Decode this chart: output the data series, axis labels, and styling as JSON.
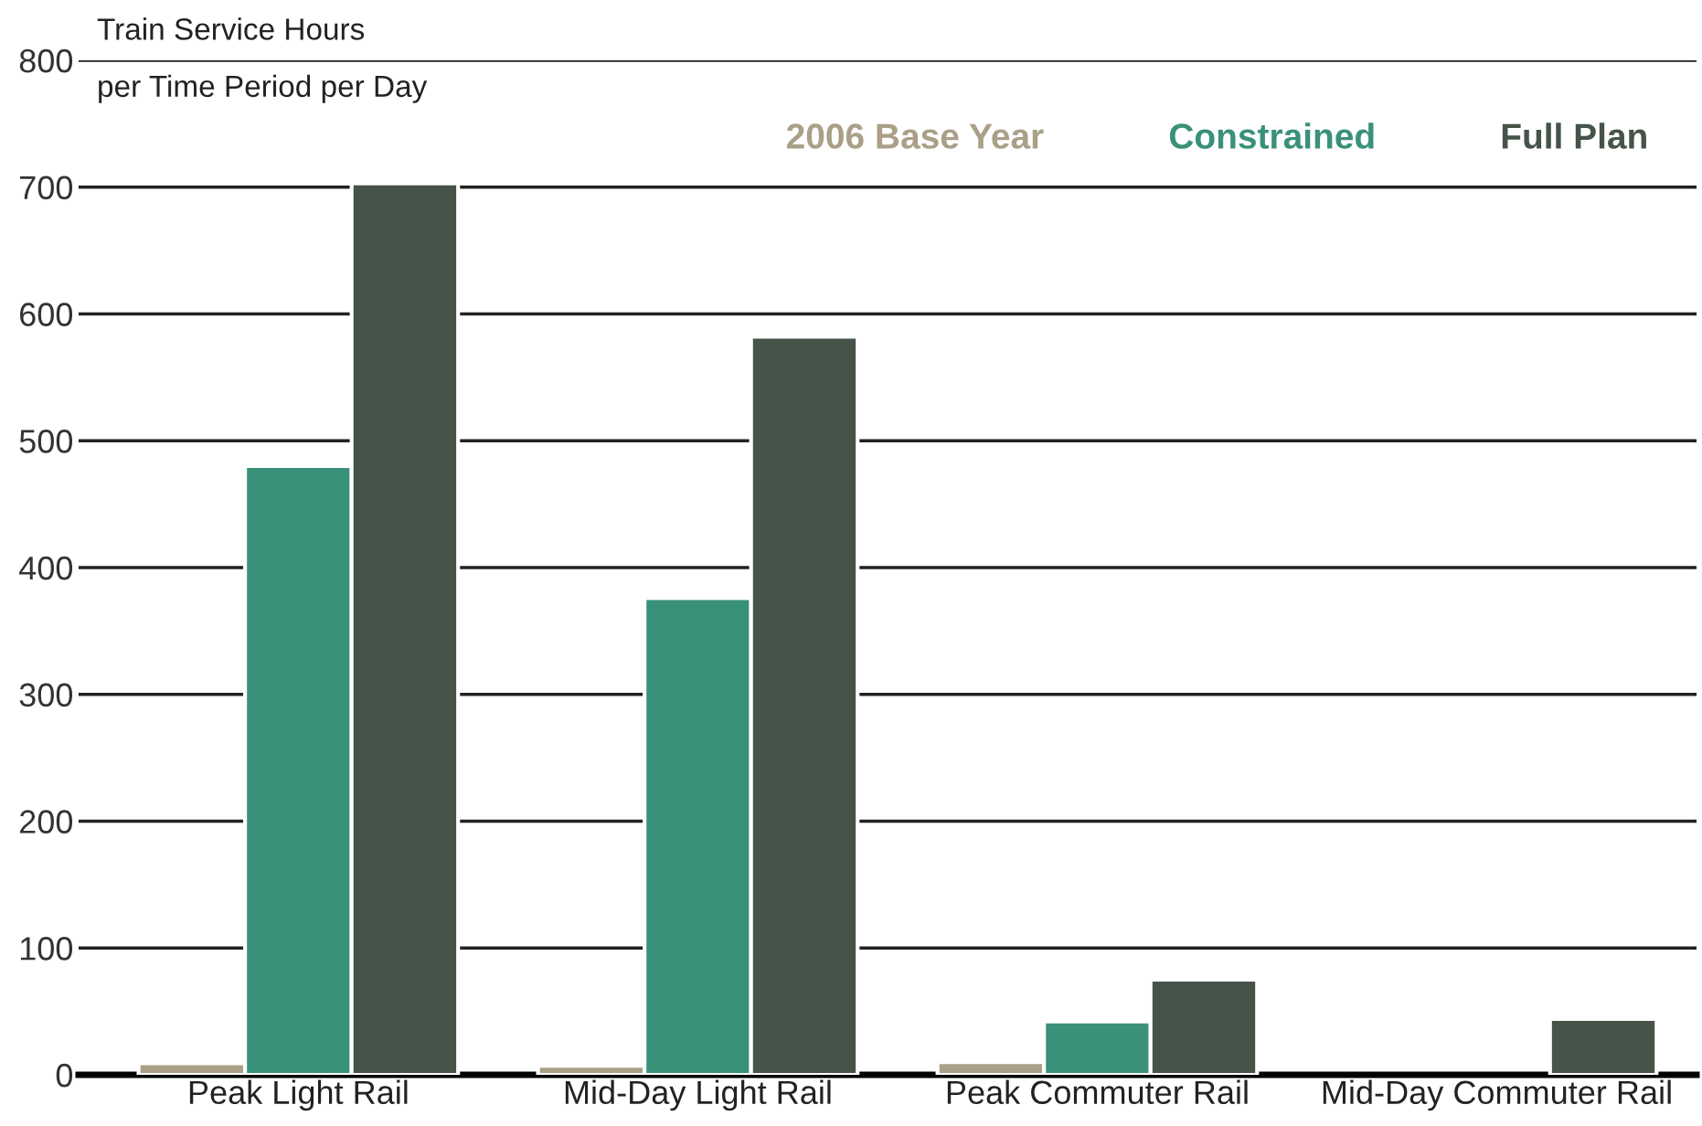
{
  "chart_data": {
    "type": "bar",
    "ylabel": "Train Service Hours\nper Time Period per Day",
    "categories": [
      "Peak Light Rail",
      "Mid-Day Light Rail",
      "Peak Commuter Rail",
      "Mid-Day Commuter Rail"
    ],
    "series": [
      {
        "name": "2006 Base Year",
        "color": "#aa9f87",
        "values": [
          9,
          7,
          10,
          null
        ]
      },
      {
        "name": "Constrained",
        "color": "#3a917a",
        "values": [
          480,
          376,
          42,
          null
        ]
      },
      {
        "name": "Full Plan",
        "color": "#455348",
        "values": [
          703,
          582,
          75,
          44
        ]
      }
    ],
    "ylim": [
      0,
      800
    ],
    "yticks": [
      0,
      100,
      200,
      300,
      400,
      500,
      600,
      700,
      800
    ],
    "grid": "y",
    "legend": "top right"
  }
}
